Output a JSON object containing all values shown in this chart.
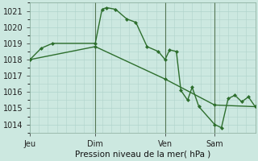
{
  "title": "Pression niveau de la mer( hPa )",
  "bg_color": "#cce8e0",
  "line_color": "#2d6e2d",
  "grid_color": "#b0d4cc",
  "ylim": [
    1013.5,
    1021.5
  ],
  "yticks": [
    1014,
    1015,
    1016,
    1017,
    1018,
    1019,
    1020,
    1021
  ],
  "day_labels": [
    "Jeu",
    "Dim",
    "Ven",
    "Sam"
  ],
  "day_positions": [
    0.0,
    0.29,
    0.6,
    0.82
  ],
  "vline_positions": [
    0.29,
    0.6,
    0.82
  ],
  "series1_x": [
    0.0,
    0.05,
    0.1,
    0.29,
    0.32,
    0.34,
    0.38,
    0.43,
    0.47,
    0.52,
    0.57,
    0.6,
    0.62,
    0.65,
    0.67,
    0.7,
    0.72,
    0.75,
    0.82,
    0.85,
    0.88,
    0.91,
    0.94,
    0.97,
    1.0
  ],
  "series1_y": [
    1018.0,
    1018.7,
    1019.0,
    1019.0,
    1021.1,
    1021.2,
    1021.1,
    1020.5,
    1020.3,
    1018.8,
    1018.5,
    1018.0,
    1018.6,
    1018.5,
    1016.1,
    1015.5,
    1016.3,
    1015.1,
    1014.0,
    1013.8,
    1015.6,
    1015.8,
    1015.4,
    1015.7,
    1015.1
  ],
  "series2_x": [
    0.0,
    0.29,
    0.6,
    0.82,
    1.0
  ],
  "series2_y": [
    1018.0,
    1018.8,
    1016.8,
    1015.2,
    1015.1
  ]
}
